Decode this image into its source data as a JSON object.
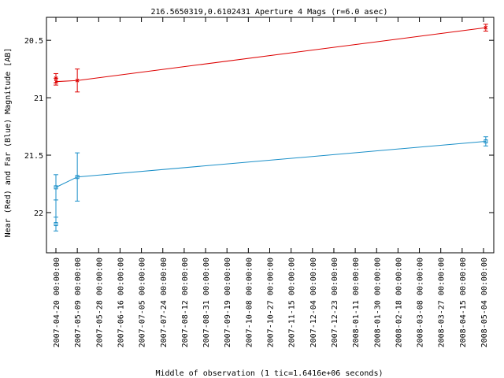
{
  "chart_data": {
    "type": "line",
    "title": "216.5650319,0.6102431   Aperture 4 Mags (r=6.0 asec)",
    "xlabel": "Middle of observation (1 tic=1.6416e+06 seconds)",
    "ylabel": "Near (Red) and Far (Blue) Magnitude [AB]",
    "ylim": [
      22.35,
      20.3
    ],
    "y_inverted": true,
    "yticks": [
      20.5,
      21,
      21.5,
      22
    ],
    "ytick_labels": [
      "20.5",
      "21",
      "21.5",
      "22"
    ],
    "xticks": [
      "2007-04-20 00:00:00",
      "2007-05-09 00:00:00",
      "2007-05-28 00:00:00",
      "2007-06-16 00:00:00",
      "2007-07-05 00:00:00",
      "2007-07-24 00:00:00",
      "2007-08-12 00:00:00",
      "2007-08-31 00:00:00",
      "2007-09-19 00:00:00",
      "2007-10-08 00:00:00",
      "2007-10-27 00:00:00",
      "2007-11-15 00:00:00",
      "2007-12-04 00:00:00",
      "2007-12-23 00:00:00",
      "2008-01-11 00:00:00",
      "2008-01-30 00:00:00",
      "2008-02-18 00:00:00",
      "2008-03-08 00:00:00",
      "2008-03-27 00:00:00",
      "2008-04-15 00:00:00",
      "2008-05-04 00:00:00"
    ],
    "grid": false,
    "series": [
      {
        "color": "#dd0000",
        "points": [
          {
            "x": "2007-04-20",
            "y": 20.83,
            "err": 0.04
          },
          {
            "x": "2007-04-20",
            "y": 20.86,
            "err": 0.03
          },
          {
            "x": "2007-05-09",
            "y": 20.85,
            "err": 0.1
          },
          {
            "x": "2008-05-06",
            "y": 20.39,
            "err": 0.03
          }
        ]
      },
      {
        "color": "#1a8fc8",
        "points": [
          {
            "x": "2007-04-20",
            "y": 22.1,
            "err": 0.06
          },
          {
            "x": "2007-04-20",
            "y": 21.78,
            "err": 0.11
          },
          {
            "x": "2007-05-09",
            "y": 21.69,
            "err": 0.21
          },
          {
            "x": "2008-05-06",
            "y": 21.38,
            "err": 0.04
          }
        ]
      }
    ]
  }
}
